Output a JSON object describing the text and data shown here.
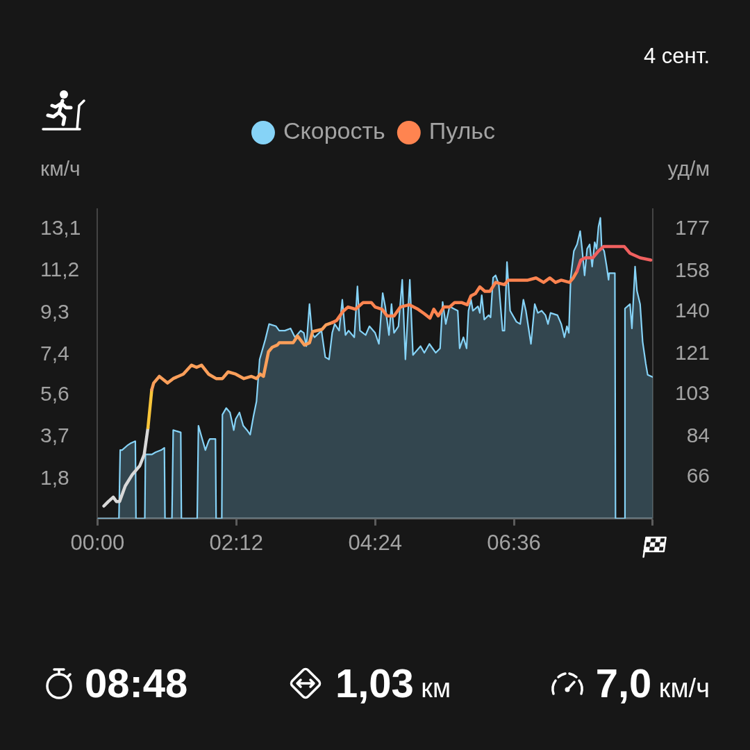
{
  "chart_data": {
    "type": "line",
    "subtitle": "4 сент.",
    "ylabel": "км/ч",
    "y2label": "уд/м",
    "xlim": [
      0,
      8.8
    ],
    "xticks": [
      {
        "value": 0,
        "label": "00:00"
      },
      {
        "value": 2.2,
        "label": "02:12"
      },
      {
        "value": 4.4,
        "label": "04:24"
      },
      {
        "value": 6.6,
        "label": "06:36"
      },
      {
        "value": 8.8,
        "label": null
      }
    ],
    "ylim": [
      0,
      14
    ],
    "yticks": [
      {
        "value": 1.8,
        "label": "1,8"
      },
      {
        "value": 3.7,
        "label": "3,7"
      },
      {
        "value": 5.6,
        "label": "5,6"
      },
      {
        "value": 7.4,
        "label": "7,4"
      },
      {
        "value": 9.3,
        "label": "9,3"
      },
      {
        "value": 11.2,
        "label": "11,2"
      },
      {
        "value": 13.1,
        "label": "13,1"
      }
    ],
    "y2lim": [
      47.4,
      185.8
    ],
    "y2ticks": [
      66,
      84,
      103,
      121,
      140,
      158,
      177
    ],
    "grid": false,
    "legend": "top",
    "series": [
      {
        "name": "Скорость",
        "type": "area",
        "color": "#86d3f7",
        "x": [
          0,
          0.34,
          0.36,
          0.39,
          0.47,
          0.52,
          0.6,
          0.61,
          0.75,
          0.76,
          0.86,
          0.92,
          1.01,
          1.06,
          1.07,
          1.18,
          1.2,
          1.32,
          1.33,
          1.58,
          1.6,
          1.65,
          1.71,
          1.76,
          1.78,
          1.87,
          1.88,
          1.97,
          1.98,
          2.04,
          2.1,
          2.16,
          2.19,
          2.25,
          2.31,
          2.37,
          2.42,
          2.47,
          2.52,
          2.57,
          2.61,
          2.66,
          2.72,
          2.83,
          2.88,
          2.97,
          3.06,
          3.13,
          3.22,
          3.27,
          3.31,
          3.36,
          3.4,
          3.44,
          3.55,
          3.61,
          3.67,
          3.72,
          3.76,
          3.83,
          3.88,
          3.93,
          3.98,
          4.07,
          4.12,
          4.16,
          4.25,
          4.31,
          4.4,
          4.46,
          4.52,
          4.56,
          4.62,
          4.66,
          4.7,
          4.77,
          4.83,
          4.88,
          4.95,
          5.0,
          5.12,
          5.18,
          5.26,
          5.36,
          5.43,
          5.47,
          5.52,
          5.58,
          5.64,
          5.71,
          5.74,
          5.8,
          5.85,
          5.88,
          5.92,
          5.95,
          6.03,
          6.06,
          6.09,
          6.13,
          6.2,
          6.23,
          6.27,
          6.31,
          6.36,
          6.42,
          6.45,
          6.49,
          6.54,
          6.64,
          6.7,
          6.75,
          6.79,
          6.87,
          6.93,
          6.98,
          7.04,
          7.1,
          7.14,
          7.18,
          7.29,
          7.35,
          7.4,
          7.44,
          7.47,
          7.5,
          7.55,
          7.6,
          7.65,
          7.68,
          7.72,
          7.76,
          7.8,
          7.84,
          7.88,
          7.91,
          7.94,
          7.97,
          7.99,
          8.03,
          8.07,
          8.1,
          8.11,
          8.2,
          8.21,
          8.35,
          8.36,
          8.44,
          8.47,
          8.52,
          8.55,
          8.6,
          8.64,
          8.69,
          8.72,
          8.8
        ],
        "values": [
          0,
          0,
          3.1,
          3.1,
          3.3,
          3.4,
          3.5,
          0,
          0,
          2.9,
          2.9,
          3.0,
          3.1,
          3.2,
          0,
          0,
          4.0,
          3.9,
          0,
          0,
          4.2,
          3.7,
          3.1,
          3.5,
          3.6,
          3.6,
          0,
          0,
          4.7,
          5.0,
          4.8,
          4.0,
          4.5,
          4.8,
          4.2,
          4.0,
          3.8,
          4.6,
          5.3,
          7.2,
          7.6,
          8.1,
          8.8,
          8.7,
          8.5,
          8.5,
          8.6,
          8.2,
          8.5,
          8.4,
          7.8,
          9.7,
          8.4,
          8.2,
          8.5,
          7.3,
          7.2,
          8.4,
          8.8,
          8.5,
          9.9,
          8.3,
          8.5,
          8.2,
          10.5,
          8.5,
          8.3,
          8.7,
          8.4,
          7.9,
          10.2,
          9.6,
          8.3,
          9.7,
          8.4,
          8.7,
          10.8,
          7.2,
          10.8,
          7.4,
          7.8,
          7.5,
          7.9,
          7.5,
          7.7,
          9.8,
          8.8,
          9.6,
          9.5,
          9.4,
          7.7,
          8.2,
          7.7,
          9.4,
          9.9,
          9.4,
          9.6,
          9.3,
          10.1,
          9.0,
          9.2,
          9.1,
          10.9,
          11.0,
          10.6,
          8.5,
          8.5,
          11.6,
          9.4,
          8.9,
          8.8,
          9.9,
          9.4,
          7.9,
          9.7,
          9.3,
          9.4,
          9.2,
          8.8,
          9.3,
          9.2,
          8.8,
          8.2,
          8.7,
          8.4,
          10.9,
          12.1,
          12.4,
          13.0,
          12.2,
          11.0,
          12.2,
          12.4,
          11.4,
          12.5,
          12.2,
          13.2,
          13.6,
          12.3,
          12.1,
          11.4,
          10.8,
          11.1,
          11.1,
          0,
          0,
          9.5,
          9.7,
          8.6,
          11.4,
          10.3,
          9.7,
          8.0,
          7.0,
          6.5,
          6.4
        ]
      },
      {
        "type": "line",
        "axis": "y2",
        "color": "#d9d9d9",
        "x": [
          0.1,
          0.17,
          0.25,
          0.3,
          0.35,
          0.44,
          0.55,
          0.67,
          0.74,
          0.8
        ],
        "values": [
          53,
          55,
          57,
          55,
          55,
          62,
          67,
          71,
          76,
          88
        ]
      },
      {
        "type": "line",
        "axis": "y2",
        "color": "#f8c53a",
        "x": [
          0.8,
          0.86
        ],
        "values": [
          88,
          105
        ]
      },
      {
        "type": "line",
        "axis": "y2",
        "color": "#fb9f5a",
        "x": [
          0.86,
          0.89,
          0.98,
          1.11,
          1.2,
          1.36,
          1.49,
          1.57,
          1.65,
          1.76,
          1.88,
          1.98,
          2.07,
          2.19,
          2.32,
          2.44,
          2.52,
          2.58,
          2.63,
          2.71,
          2.77,
          2.85,
          2.88,
          3.03,
          3.1,
          3.17,
          3.28,
          3.36,
          3.41,
          3.56,
          3.62,
          3.72
        ],
        "values": [
          105,
          108,
          111,
          108,
          110,
          112,
          116,
          115,
          116,
          112,
          110,
          110,
          113,
          112,
          110,
          111,
          110,
          112,
          111,
          122,
          124,
          125,
          126,
          126,
          126,
          129,
          125,
          126,
          131,
          132,
          134,
          135
        ]
      },
      {
        "name": "Пульс",
        "type": "line",
        "axis": "y2",
        "color": "#ff8450",
        "x": [
          3.72,
          3.79,
          3.89,
          3.97,
          4.09,
          4.21,
          4.34,
          4.4,
          4.51,
          4.59,
          4.7,
          4.8,
          4.94,
          5.08,
          5.18,
          5.27,
          5.33,
          5.4,
          5.49,
          5.58,
          5.66,
          5.77,
          5.86,
          5.92,
          5.99,
          6.06,
          6.14,
          6.22,
          6.31,
          6.45,
          6.51,
          6.64,
          6.82,
          6.95,
          7.07,
          7.17,
          7.26,
          7.35,
          7.48,
          7.54,
          7.6
        ],
        "values": [
          135,
          136,
          140,
          142,
          141,
          144,
          144,
          142,
          141,
          138,
          138,
          142,
          143,
          141,
          139,
          137,
          141,
          138,
          142,
          142,
          144,
          144,
          143,
          147,
          148,
          151,
          149,
          149,
          153,
          152,
          154,
          154,
          154,
          155,
          153,
          155,
          153,
          154,
          153,
          155,
          158
        ]
      },
      {
        "type": "line",
        "axis": "y2",
        "color": "#f0605f",
        "x": [
          7.6,
          7.66,
          7.73,
          7.85,
          7.94,
          8.02,
          8.16,
          8.29,
          8.35,
          8.44,
          8.6,
          8.77
        ],
        "values": [
          158,
          163,
          164,
          164,
          167,
          169,
          169,
          169,
          169,
          166,
          164,
          163
        ]
      }
    ],
    "annotations": [
      "08:48",
      "1,03 км",
      "7,0 км/ч"
    ]
  }
}
